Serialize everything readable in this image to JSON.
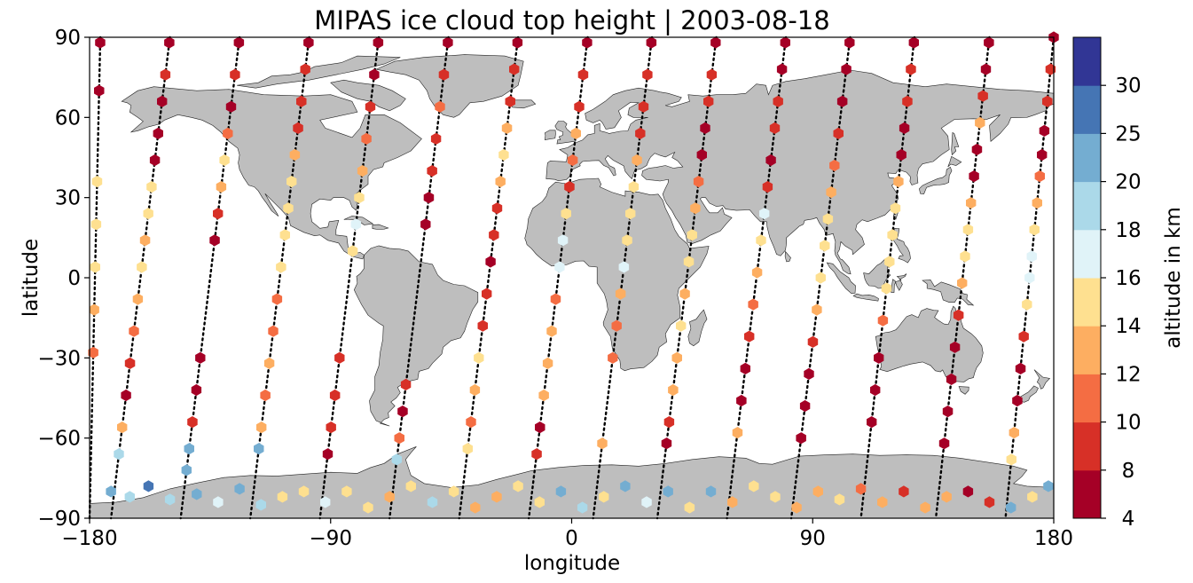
{
  "chart_data": {
    "type": "scatter",
    "title": "MIPAS ice cloud top height | 2003-08-18",
    "xlabel": "longitude",
    "ylabel": "latitude",
    "xlim": [
      -180,
      180
    ],
    "ylim": [
      -90,
      90
    ],
    "xticks": [
      -180,
      -90,
      0,
      90,
      180
    ],
    "yticks": [
      -90,
      -60,
      -30,
      0,
      30,
      60,
      90
    ],
    "xtick_labels": [
      "−180",
      "−90",
      "0",
      "90",
      "180"
    ],
    "ytick_labels": [
      "−90",
      "−60",
      "−30",
      "0",
      "30",
      "60",
      "90"
    ],
    "basemap": "world land masses (gray) with coastlines and rivers",
    "land_color": "#bebebe",
    "colorbar": {
      "label": "altitude in km",
      "boundaries": [
        4,
        8,
        10,
        12,
        14,
        16,
        18,
        20,
        25,
        30
      ],
      "tick_labels": [
        "4",
        "8",
        "10",
        "12",
        "14",
        "16",
        "18",
        "20",
        "25",
        "30"
      ],
      "colors": [
        "#a50026",
        "#d73027",
        "#f46d43",
        "#fdae61",
        "#fee090",
        "#e0f3f8",
        "#abd9e9",
        "#74add1",
        "#4575b4",
        "#313695"
      ],
      "colormap": "RdYlBu discrete"
    },
    "marker": "hexagon",
    "no_cloud_marker": "black dots along orbit track",
    "orbits": [
      {
        "lon0": 180,
        "lon1": 162,
        "pts": [
          [
            90,
            7
          ],
          [
            78,
            8
          ],
          [
            66,
            9
          ],
          [
            55,
            7
          ],
          [
            46,
            6
          ],
          [
            38,
            10
          ],
          [
            28,
            12
          ],
          [
            18,
            15
          ],
          [
            8,
            17
          ],
          [
            0,
            16
          ],
          [
            -10,
            15
          ],
          [
            -22,
            9
          ],
          [
            -34,
            7
          ],
          [
            -46,
            6
          ],
          [
            -58,
            12
          ],
          [
            -68,
            15
          ]
        ]
      },
      {
        "lon0": 156,
        "lon1": 136,
        "pts": [
          [
            88,
            6
          ],
          [
            78,
            7
          ],
          [
            68,
            8
          ],
          [
            58,
            13
          ],
          [
            48,
            7
          ],
          [
            38,
            6
          ],
          [
            28,
            13
          ],
          [
            18,
            14
          ],
          [
            8,
            15
          ],
          [
            -2,
            13
          ],
          [
            -14,
            9
          ],
          [
            -26,
            7
          ],
          [
            -38,
            6
          ],
          [
            -50,
            5
          ],
          [
            -62,
            5
          ]
        ]
      },
      {
        "lon0": 128,
        "lon1": 108,
        "pts": [
          [
            88,
            7
          ],
          [
            78,
            8
          ],
          [
            66,
            9
          ],
          [
            56,
            6
          ],
          [
            46,
            7
          ],
          [
            36,
            13
          ],
          [
            26,
            15
          ],
          [
            16,
            14
          ],
          [
            6,
            15
          ],
          [
            -4,
            14
          ],
          [
            -16,
            10
          ],
          [
            -30,
            7
          ],
          [
            -42,
            6
          ],
          [
            -54,
            7
          ]
        ]
      },
      {
        "lon0": 104,
        "lon1": 82,
        "pts": [
          [
            88,
            6
          ],
          [
            78,
            6
          ],
          [
            66,
            7
          ],
          [
            54,
            8
          ],
          [
            42,
            11
          ],
          [
            32,
            13
          ],
          [
            22,
            15
          ],
          [
            12,
            14
          ],
          [
            0,
            15
          ],
          [
            -12,
            12
          ],
          [
            -24,
            9
          ],
          [
            -36,
            7
          ],
          [
            -48,
            6
          ],
          [
            -60,
            6
          ]
        ]
      },
      {
        "lon0": 80,
        "lon1": 58,
        "pts": [
          [
            88,
            6
          ],
          [
            78,
            7
          ],
          [
            66,
            9
          ],
          [
            56,
            8
          ],
          [
            44,
            6
          ],
          [
            34,
            8
          ],
          [
            24,
            17
          ],
          [
            14,
            14
          ],
          [
            2,
            13
          ],
          [
            -10,
            11
          ],
          [
            -22,
            9
          ],
          [
            -34,
            7
          ],
          [
            -46,
            6
          ],
          [
            -58,
            12
          ]
        ]
      },
      {
        "lon0": 54,
        "lon1": 32,
        "pts": [
          [
            88,
            7
          ],
          [
            76,
            9
          ],
          [
            66,
            8
          ],
          [
            56,
            7
          ],
          [
            46,
            6
          ],
          [
            36,
            10
          ],
          [
            26,
            12
          ],
          [
            16,
            15
          ],
          [
            6,
            15
          ],
          [
            -6,
            13
          ],
          [
            -18,
            14
          ],
          [
            -30,
            12
          ],
          [
            -42,
            13
          ],
          [
            -54,
            9
          ],
          [
            -62,
            6
          ]
        ]
      },
      {
        "lon0": 30,
        "lon1": 8,
        "pts": [
          [
            88,
            7
          ],
          [
            76,
            8
          ],
          [
            64,
            9
          ],
          [
            54,
            8
          ],
          [
            44,
            12
          ],
          [
            34,
            14
          ],
          [
            24,
            15
          ],
          [
            14,
            15
          ],
          [
            4,
            16
          ],
          [
            -6,
            13
          ],
          [
            -18,
            11
          ],
          [
            -30,
            10
          ],
          [
            -62,
            12
          ]
        ]
      },
      {
        "lon0": 6,
        "lon1": -16,
        "pts": [
          [
            88,
            7
          ],
          [
            76,
            8
          ],
          [
            64,
            9
          ],
          [
            54,
            13
          ],
          [
            44,
            11
          ],
          [
            34,
            9
          ],
          [
            24,
            14
          ],
          [
            14,
            16
          ],
          [
            4,
            17
          ],
          [
            -8,
            11
          ],
          [
            -20,
            12
          ],
          [
            -32,
            13
          ],
          [
            -44,
            12
          ],
          [
            -56,
            7
          ],
          [
            -66,
            9
          ]
        ]
      },
      {
        "lon0": -20,
        "lon1": -42,
        "pts": [
          [
            88,
            7
          ],
          [
            78,
            8
          ],
          [
            66,
            8
          ],
          [
            56,
            13
          ],
          [
            46,
            14
          ],
          [
            36,
            13
          ],
          [
            26,
            9
          ],
          [
            16,
            8
          ],
          [
            6,
            7
          ],
          [
            -6,
            8
          ],
          [
            -18,
            9
          ],
          [
            -30,
            14
          ],
          [
            -42,
            12
          ],
          [
            -54,
            11
          ],
          [
            -64,
            15
          ]
        ]
      },
      {
        "lon0": -46,
        "lon1": -68,
        "pts": [
          [
            88,
            7
          ],
          [
            76,
            9
          ],
          [
            64,
            10
          ],
          [
            52,
            9
          ],
          [
            40,
            8
          ],
          [
            30,
            7
          ],
          [
            20,
            6
          ],
          [
            -40,
            9
          ],
          [
            -50,
            7
          ],
          [
            -60,
            10
          ],
          [
            -68,
            18
          ]
        ]
      },
      {
        "lon0": -72,
        "lon1": -94,
        "pts": [
          [
            88,
            6
          ],
          [
            76,
            7
          ],
          [
            64,
            9
          ],
          [
            52,
            10
          ],
          [
            40,
            13
          ],
          [
            30,
            15
          ],
          [
            20,
            16
          ],
          [
            10,
            15
          ],
          [
            -30,
            9
          ],
          [
            -44,
            8
          ],
          [
            -56,
            9
          ],
          [
            -66,
            7
          ]
        ]
      },
      {
        "lon0": -98,
        "lon1": -120,
        "pts": [
          [
            88,
            6
          ],
          [
            78,
            8
          ],
          [
            66,
            9
          ],
          [
            56,
            8
          ],
          [
            46,
            13
          ],
          [
            36,
            14
          ],
          [
            26,
            15
          ],
          [
            16,
            15
          ],
          [
            4,
            14
          ],
          [
            -8,
            11
          ],
          [
            -20,
            10
          ],
          [
            -32,
            12
          ],
          [
            -44,
            11
          ],
          [
            -56,
            13
          ],
          [
            -64,
            22
          ]
        ]
      },
      {
        "lon0": -124,
        "lon1": -146,
        "pts": [
          [
            88,
            6
          ],
          [
            76,
            8
          ],
          [
            64,
            7
          ],
          [
            54,
            10
          ],
          [
            44,
            15
          ],
          [
            34,
            12
          ],
          [
            24,
            8
          ],
          [
            14,
            7
          ],
          [
            -30,
            6
          ],
          [
            -42,
            7
          ],
          [
            -54,
            8
          ],
          [
            -64,
            22
          ],
          [
            -72,
            22
          ]
        ]
      },
      {
        "lon0": -150,
        "lon1": -172,
        "pts": [
          [
            88,
            7
          ],
          [
            76,
            8
          ],
          [
            66,
            7
          ],
          [
            54,
            6
          ],
          [
            44,
            5
          ],
          [
            34,
            15
          ],
          [
            24,
            14
          ],
          [
            14,
            13
          ],
          [
            4,
            14
          ],
          [
            -8,
            13
          ],
          [
            -20,
            11
          ],
          [
            -32,
            9
          ],
          [
            -44,
            7
          ],
          [
            -56,
            12
          ],
          [
            -66,
            18
          ]
        ]
      },
      {
        "lon0": -176,
        "lon1": -180,
        "pts": [
          [
            88,
            7
          ],
          [
            70,
            6
          ],
          [
            36,
            14
          ],
          [
            20,
            15
          ],
          [
            4,
            15
          ],
          [
            -12,
            12
          ],
          [
            -28,
            10
          ]
        ]
      }
    ],
    "antarctic_points": [
      [
        -172,
        -80,
        20
      ],
      [
        -165,
        -82,
        18
      ],
      [
        -158,
        -78,
        25
      ],
      [
        -150,
        -83,
        18
      ],
      [
        -140,
        -81,
        20
      ],
      [
        -132,
        -84,
        16
      ],
      [
        -124,
        -79,
        22
      ],
      [
        -116,
        -85,
        18
      ],
      [
        -108,
        -82,
        14
      ],
      [
        -100,
        -80,
        15
      ],
      [
        -92,
        -84,
        17
      ],
      [
        -84,
        -80,
        15
      ],
      [
        -76,
        -86,
        14
      ],
      [
        -68,
        -82,
        13
      ],
      [
        -60,
        -78,
        15
      ],
      [
        -52,
        -84,
        18
      ],
      [
        -44,
        -80,
        14
      ],
      [
        -36,
        -86,
        13
      ],
      [
        -28,
        -82,
        12
      ],
      [
        -20,
        -78,
        15
      ],
      [
        -12,
        -84,
        14
      ],
      [
        -4,
        -80,
        21
      ],
      [
        4,
        -86,
        18
      ],
      [
        12,
        -82,
        15
      ],
      [
        20,
        -78,
        21
      ],
      [
        28,
        -84,
        16
      ],
      [
        36,
        -80,
        22
      ],
      [
        44,
        -86,
        14
      ],
      [
        52,
        -80,
        20
      ],
      [
        60,
        -84,
        13
      ],
      [
        68,
        -78,
        15
      ],
      [
        76,
        -82,
        14
      ],
      [
        84,
        -86,
        12
      ],
      [
        92,
        -80,
        13
      ],
      [
        100,
        -83,
        14
      ],
      [
        108,
        -79,
        10
      ],
      [
        116,
        -84,
        12
      ],
      [
        124,
        -80,
        9
      ],
      [
        132,
        -86,
        12
      ],
      [
        140,
        -82,
        13
      ],
      [
        148,
        -80,
        7
      ],
      [
        156,
        -84,
        8
      ],
      [
        164,
        -86,
        22
      ],
      [
        172,
        -82,
        14
      ],
      [
        178,
        -78,
        20
      ]
    ]
  }
}
